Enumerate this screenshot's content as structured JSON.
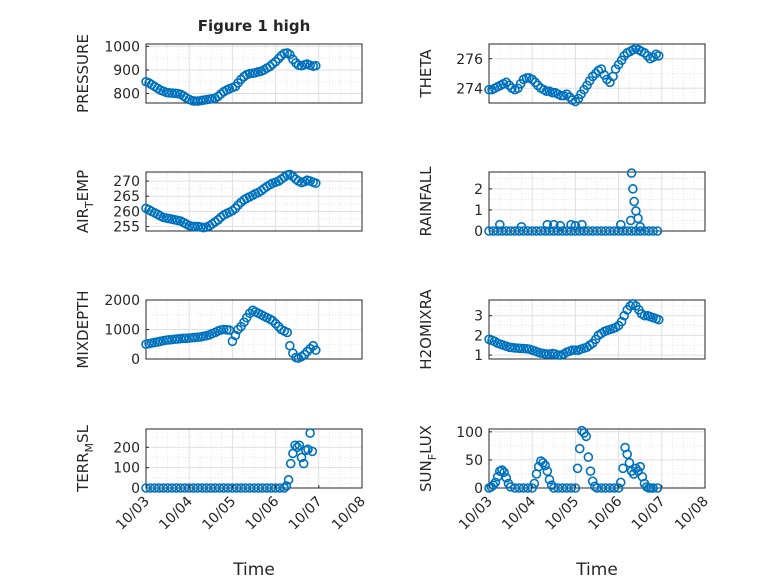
{
  "chart_data": [
    {
      "type": "scatter",
      "id": "pressure",
      "title": "Figure 1 high",
      "ylabel": "PRESSURE",
      "xlabel": "",
      "ylim": [
        760,
        1010
      ],
      "yticks": [
        800,
        900,
        1000
      ],
      "x": [
        0,
        0.07,
        0.13,
        0.2,
        0.27,
        0.33,
        0.4,
        0.47,
        0.53,
        0.6,
        0.67,
        0.73,
        0.8,
        0.87,
        0.93,
        1,
        1.07,
        1.13,
        1.2,
        1.27,
        1.33,
        1.4,
        1.47,
        1.53,
        1.6,
        1.67,
        1.73,
        1.8,
        1.87,
        1.93,
        2,
        2.07,
        2.13,
        2.2,
        2.27,
        2.33,
        2.4,
        2.47,
        2.53,
        2.6,
        2.67,
        2.73,
        2.8,
        2.87,
        2.93,
        3,
        3.07,
        3.13,
        3.2,
        3.27,
        3.33,
        3.4,
        3.47,
        3.53,
        3.6,
        3.67,
        3.73,
        3.8,
        3.87,
        3.93
      ],
      "y": [
        850,
        845,
        838,
        830,
        822,
        815,
        810,
        805,
        803,
        802,
        801,
        800,
        797,
        790,
        782,
        775,
        770,
        768,
        768,
        770,
        772,
        774,
        776,
        778,
        780,
        788,
        798,
        808,
        815,
        820,
        825,
        830,
        845,
        860,
        872,
        880,
        884,
        886,
        888,
        892,
        895,
        900,
        908,
        915,
        925,
        935,
        948,
        960,
        970,
        972,
        965,
        945,
        930,
        920,
        918,
        922,
        925,
        920,
        916,
        918
      ]
    },
    {
      "type": "scatter",
      "id": "theta",
      "title": "",
      "ylabel": "THETA",
      "xlabel": "",
      "ylim": [
        273,
        277
      ],
      "yticks": [
        274,
        276
      ],
      "x": [
        0,
        0.07,
        0.13,
        0.2,
        0.27,
        0.33,
        0.4,
        0.47,
        0.53,
        0.6,
        0.67,
        0.73,
        0.8,
        0.87,
        0.93,
        1,
        1.07,
        1.13,
        1.2,
        1.27,
        1.33,
        1.4,
        1.47,
        1.53,
        1.6,
        1.67,
        1.73,
        1.8,
        1.87,
        1.93,
        2,
        2.07,
        2.13,
        2.2,
        2.27,
        2.33,
        2.4,
        2.47,
        2.53,
        2.6,
        2.67,
        2.73,
        2.8,
        2.87,
        2.93,
        3,
        3.07,
        3.13,
        3.2,
        3.27,
        3.33,
        3.4,
        3.47,
        3.53,
        3.6,
        3.67,
        3.73,
        3.8,
        3.87,
        3.93
      ],
      "y": [
        273.9,
        273.9,
        274.0,
        274.1,
        274.2,
        274.3,
        274.4,
        274.2,
        274.0,
        273.9,
        274.0,
        274.3,
        274.6,
        274.7,
        274.7,
        274.6,
        274.4,
        274.2,
        274.0,
        273.9,
        273.8,
        273.8,
        273.7,
        273.7,
        273.6,
        273.5,
        273.5,
        273.6,
        273.4,
        273.2,
        273.1,
        273.3,
        273.6,
        273.9,
        274.2,
        274.5,
        274.8,
        275.0,
        275.2,
        275.3,
        274.9,
        274.6,
        274.4,
        274.8,
        275.3,
        275.6,
        275.9,
        276.2,
        276.4,
        276.5,
        276.6,
        276.7,
        276.6,
        276.5,
        276.4,
        276.2,
        276.0,
        276.1,
        276.3,
        276.2
      ]
    },
    {
      "type": "scatter",
      "id": "air_temp",
      "title": "",
      "ylabel": "AIR_TEMP",
      "xlabel": "",
      "ylim": [
        253.5,
        273
      ],
      "yticks": [
        255,
        260,
        265,
        270
      ],
      "x": [
        0,
        0.07,
        0.13,
        0.2,
        0.27,
        0.33,
        0.4,
        0.47,
        0.53,
        0.6,
        0.67,
        0.73,
        0.8,
        0.87,
        0.93,
        1,
        1.07,
        1.13,
        1.2,
        1.27,
        1.33,
        1.4,
        1.47,
        1.53,
        1.6,
        1.67,
        1.73,
        1.8,
        1.87,
        1.93,
        2,
        2.07,
        2.13,
        2.2,
        2.27,
        2.33,
        2.4,
        2.47,
        2.53,
        2.6,
        2.67,
        2.73,
        2.8,
        2.87,
        2.93,
        3,
        3.07,
        3.13,
        3.2,
        3.27,
        3.33,
        3.4,
        3.47,
        3.53,
        3.6,
        3.67,
        3.73,
        3.8,
        3.87,
        3.93
      ],
      "y": [
        261,
        260.5,
        260,
        259.5,
        259,
        258.5,
        258,
        257.8,
        257.6,
        257.4,
        257.2,
        257,
        256.8,
        256.3,
        255.8,
        255.3,
        255,
        255,
        255,
        254.8,
        254.6,
        254.8,
        255.2,
        255.8,
        256.5,
        257.2,
        258,
        258.8,
        259.3,
        259.7,
        260.2,
        261,
        262,
        263,
        263.8,
        264.3,
        264.8,
        265.3,
        265.8,
        266.2,
        266.8,
        267.5,
        268.2,
        268.8,
        269.3,
        269.6,
        270,
        270.6,
        271.3,
        272,
        272.2,
        271.5,
        270.6,
        270,
        269.5,
        269.8,
        270.3,
        270,
        269.6,
        269.3
      ]
    },
    {
      "type": "scatter",
      "id": "rainfall",
      "title": "",
      "ylabel": "RAINFALL",
      "xlabel": "",
      "ylim": [
        0,
        2.8
      ],
      "yticks": [
        0,
        1,
        2
      ],
      "x": [
        0,
        0.1,
        0.2,
        0.3,
        0.4,
        0.5,
        0.6,
        0.7,
        0.8,
        0.9,
        1,
        1.1,
        1.2,
        1.3,
        1.4,
        1.5,
        1.6,
        1.7,
        1.8,
        1.9,
        2,
        2.1,
        2.2,
        2.3,
        2.4,
        2.5,
        2.6,
        2.7,
        2.8,
        2.9,
        3,
        3.1,
        3.2,
        3.3,
        3.4,
        3.5,
        3.6,
        3.7,
        3.8,
        3.9,
        0.25,
        0.75,
        1.35,
        1.5,
        1.65,
        1.9,
        2.0,
        2.15,
        3.05,
        3.28,
        3.3,
        3.33,
        3.36,
        3.4,
        3.45,
        3.5
      ],
      "y": [
        0,
        0,
        0,
        0,
        0,
        0,
        0,
        0,
        0,
        0,
        0,
        0,
        0,
        0,
        0,
        0,
        0,
        0,
        0,
        0,
        0,
        0,
        0,
        0,
        0,
        0,
        0,
        0,
        0,
        0,
        0,
        0,
        0,
        0,
        0,
        0,
        0,
        0,
        0,
        0,
        0.3,
        0.2,
        0.3,
        0.3,
        0.25,
        0.3,
        0.25,
        0.3,
        0.3,
        0.5,
        2.75,
        2.0,
        1.4,
        0.95,
        0.6,
        0.2
      ]
    },
    {
      "type": "scatter",
      "id": "mixdepth",
      "title": "",
      "ylabel": "MIXDEPTH",
      "xlabel": "",
      "ylim": [
        0,
        2000
      ],
      "yticks": [
        0,
        1000,
        2000
      ],
      "x": [
        0,
        0.07,
        0.13,
        0.2,
        0.27,
        0.33,
        0.4,
        0.47,
        0.53,
        0.6,
        0.67,
        0.73,
        0.8,
        0.87,
        0.93,
        1,
        1.07,
        1.13,
        1.2,
        1.27,
        1.33,
        1.4,
        1.47,
        1.53,
        1.6,
        1.67,
        1.73,
        1.8,
        1.87,
        1.93,
        2,
        2.07,
        2.13,
        2.2,
        2.27,
        2.33,
        2.4,
        2.47,
        2.53,
        2.6,
        2.67,
        2.73,
        2.8,
        2.87,
        2.93,
        3,
        3.07,
        3.13,
        3.2,
        3.27,
        3.33,
        3.4,
        3.47,
        3.53,
        3.6,
        3.67,
        3.73,
        3.8,
        3.87,
        3.93
      ],
      "y": [
        500,
        520,
        540,
        560,
        580,
        600,
        620,
        640,
        650,
        660,
        670,
        680,
        690,
        700,
        700,
        710,
        720,
        730,
        740,
        750,
        770,
        790,
        820,
        860,
        900,
        950,
        980,
        1000,
        990,
        980,
        600,
        800,
        1000,
        1100,
        1250,
        1400,
        1550,
        1650,
        1600,
        1550,
        1500,
        1450,
        1400,
        1350,
        1300,
        1200,
        1100,
        1000,
        950,
        900,
        450,
        200,
        50,
        30,
        80,
        150,
        250,
        350,
        450,
        300
      ]
    },
    {
      "type": "scatter",
      "id": "h2omixra",
      "title": "",
      "ylabel": "H2OMIXRA",
      "xlabel": "",
      "ylim": [
        0.8,
        3.8
      ],
      "yticks": [
        1,
        2,
        3
      ],
      "x": [
        0,
        0.07,
        0.13,
        0.2,
        0.27,
        0.33,
        0.4,
        0.47,
        0.53,
        0.6,
        0.67,
        0.73,
        0.8,
        0.87,
        0.93,
        1,
        1.07,
        1.13,
        1.2,
        1.27,
        1.33,
        1.4,
        1.47,
        1.53,
        1.6,
        1.67,
        1.73,
        1.8,
        1.87,
        1.93,
        2,
        2.07,
        2.13,
        2.2,
        2.27,
        2.33,
        2.4,
        2.47,
        2.53,
        2.6,
        2.67,
        2.73,
        2.8,
        2.87,
        2.93,
        3,
        3.07,
        3.13,
        3.2,
        3.27,
        3.33,
        3.4,
        3.47,
        3.53,
        3.6,
        3.67,
        3.73,
        3.8,
        3.87,
        3.93
      ],
      "y": [
        1.8,
        1.75,
        1.7,
        1.6,
        1.55,
        1.5,
        1.45,
        1.4,
        1.38,
        1.36,
        1.35,
        1.34,
        1.33,
        1.32,
        1.3,
        1.25,
        1.2,
        1.15,
        1.1,
        1.08,
        1.05,
        1.05,
        1.08,
        1.05,
        1.0,
        1.0,
        1.05,
        1.15,
        1.2,
        1.25,
        1.25,
        1.25,
        1.3,
        1.35,
        1.4,
        1.5,
        1.6,
        1.8,
        2.0,
        2.1,
        2.2,
        2.25,
        2.3,
        2.35,
        2.4,
        2.5,
        2.7,
        3.0,
        3.3,
        3.5,
        3.6,
        3.5,
        3.3,
        3.1,
        3.0,
        3.0,
        2.95,
        2.9,
        2.85,
        2.8
      ]
    },
    {
      "type": "scatter",
      "id": "terr_msl",
      "title": "",
      "ylabel": "TERR_MSL",
      "xlabel": "Time",
      "ylim": [
        0,
        290
      ],
      "yticks": [
        0,
        100,
        200
      ],
      "xticks": [
        "10/03",
        "10/04",
        "10/05",
        "10/06",
        "10/07",
        "10/08"
      ],
      "x": [
        0,
        0.1,
        0.2,
        0.3,
        0.4,
        0.5,
        0.6,
        0.7,
        0.8,
        0.9,
        1,
        1.1,
        1.2,
        1.3,
        1.4,
        1.5,
        1.6,
        1.7,
        1.8,
        1.9,
        2,
        2.1,
        2.2,
        2.3,
        2.4,
        2.5,
        2.6,
        2.7,
        2.8,
        2.9,
        3,
        3.1,
        3.2,
        3.25,
        3.3,
        3.35,
        3.4,
        3.45,
        3.5,
        3.55,
        3.6,
        3.65,
        3.7,
        3.75,
        3.8,
        3.85
      ],
      "y": [
        0,
        0,
        0,
        0,
        0,
        0,
        0,
        0,
        0,
        0,
        0,
        0,
        0,
        0,
        0,
        0,
        0,
        0,
        0,
        0,
        0,
        0,
        0,
        0,
        0,
        0,
        0,
        0,
        0,
        0,
        0,
        0,
        0,
        10,
        40,
        120,
        170,
        210,
        200,
        210,
        150,
        120,
        185,
        190,
        270,
        180
      ]
    },
    {
      "type": "scatter",
      "id": "sun_flux",
      "title": "",
      "ylabel": "SUN_FLUX",
      "xlabel": "Time",
      "ylim": [
        0,
        105
      ],
      "yticks": [
        0,
        50,
        100
      ],
      "xticks": [
        "10/03",
        "10/04",
        "10/05",
        "10/06",
        "10/07",
        "10/08"
      ],
      "x": [
        0,
        0.05,
        0.1,
        0.15,
        0.2,
        0.25,
        0.3,
        0.35,
        0.4,
        0.45,
        0.5,
        0.6,
        0.7,
        0.8,
        0.9,
        1,
        1.05,
        1.1,
        1.15,
        1.2,
        1.25,
        1.3,
        1.35,
        1.4,
        1.45,
        1.5,
        1.6,
        1.7,
        1.8,
        1.9,
        2,
        2.05,
        2.1,
        2.15,
        2.2,
        2.25,
        2.3,
        2.35,
        2.4,
        2.45,
        2.5,
        2.6,
        2.7,
        2.8,
        2.9,
        3,
        3.05,
        3.1,
        3.15,
        3.2,
        3.25,
        3.3,
        3.35,
        3.4,
        3.45,
        3.5,
        3.55,
        3.6,
        3.65,
        3.7,
        3.75,
        3.8,
        3.9
      ],
      "y": [
        0,
        2,
        5,
        10,
        20,
        30,
        32,
        28,
        18,
        8,
        2,
        0,
        0,
        0,
        0,
        0,
        8,
        25,
        38,
        48,
        45,
        40,
        30,
        15,
        5,
        0,
        0,
        0,
        0,
        0,
        0,
        35,
        70,
        102,
        98,
        92,
        55,
        30,
        12,
        3,
        0,
        0,
        0,
        0,
        0,
        0,
        10,
        35,
        72,
        60,
        45,
        30,
        25,
        35,
        30,
        38,
        20,
        8,
        2,
        0,
        0,
        0,
        0
      ]
    }
  ]
}
